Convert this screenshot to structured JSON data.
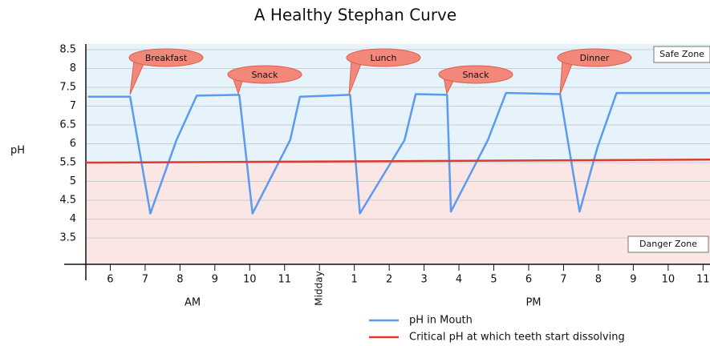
{
  "chart_data": {
    "type": "line",
    "title": "A Healthy Stephan Curve",
    "y_label": "pH",
    "x_groups": [
      "AM",
      "PM"
    ],
    "annotations": [
      "Breakfast",
      "Snack",
      "Lunch",
      "Snack",
      "Dinner"
    ],
    "zones": [
      "Safe Zone",
      "Danger Zone"
    ],
    "xlim": [
      5.3,
      23.2
    ],
    "ylim": [
      2.8,
      8.5
    ],
    "xticks": [
      6,
      7,
      8,
      9,
      10,
      11,
      {
        "value": 12,
        "label": "Midday"
      },
      {
        "value": 13,
        "label": "1"
      },
      {
        "value": 14,
        "label": "2"
      },
      {
        "value": 15,
        "label": "3"
      },
      {
        "value": 16,
        "label": "4"
      },
      {
        "value": 17,
        "label": "5"
      },
      {
        "value": 18,
        "label": "6"
      },
      {
        "value": 19,
        "label": "7"
      },
      {
        "value": 20,
        "label": "8"
      },
      {
        "value": 21,
        "label": "9"
      },
      {
        "value": 22,
        "label": "10"
      },
      {
        "value": 23,
        "label": "11"
      }
    ],
    "yticks": [
      3.5,
      4,
      4.5,
      5,
      5.5,
      6,
      6.5,
      7,
      7.5,
      8,
      8.5
    ],
    "grid": true,
    "series": [
      {
        "name": "pH in Mouth",
        "color": "#5b9bef",
        "x": [
          5.36,
          6.57,
          7.15,
          7.9,
          8.48,
          9.7,
          10.08,
          11.16,
          11.44,
          12.88,
          13.16,
          14.44,
          14.76,
          15.66,
          15.77,
          16.83,
          17.35,
          18.9,
          19.46,
          19.97,
          20.52,
          23.2
        ],
        "values": [
          7.25,
          7.25,
          4.15,
          6.1,
          7.28,
          7.3,
          4.15,
          6.1,
          7.25,
          7.3,
          4.15,
          6.1,
          7.32,
          7.3,
          4.2,
          6.1,
          7.35,
          7.32,
          4.2,
          5.9,
          7.35,
          7.35
        ]
      },
      {
        "name": "Critical pH at which teeth start dissolving",
        "color": "#e03a2c",
        "x": [
          5.3,
          23.2
        ],
        "values": [
          5.5,
          5.58
        ]
      }
    ]
  }
}
